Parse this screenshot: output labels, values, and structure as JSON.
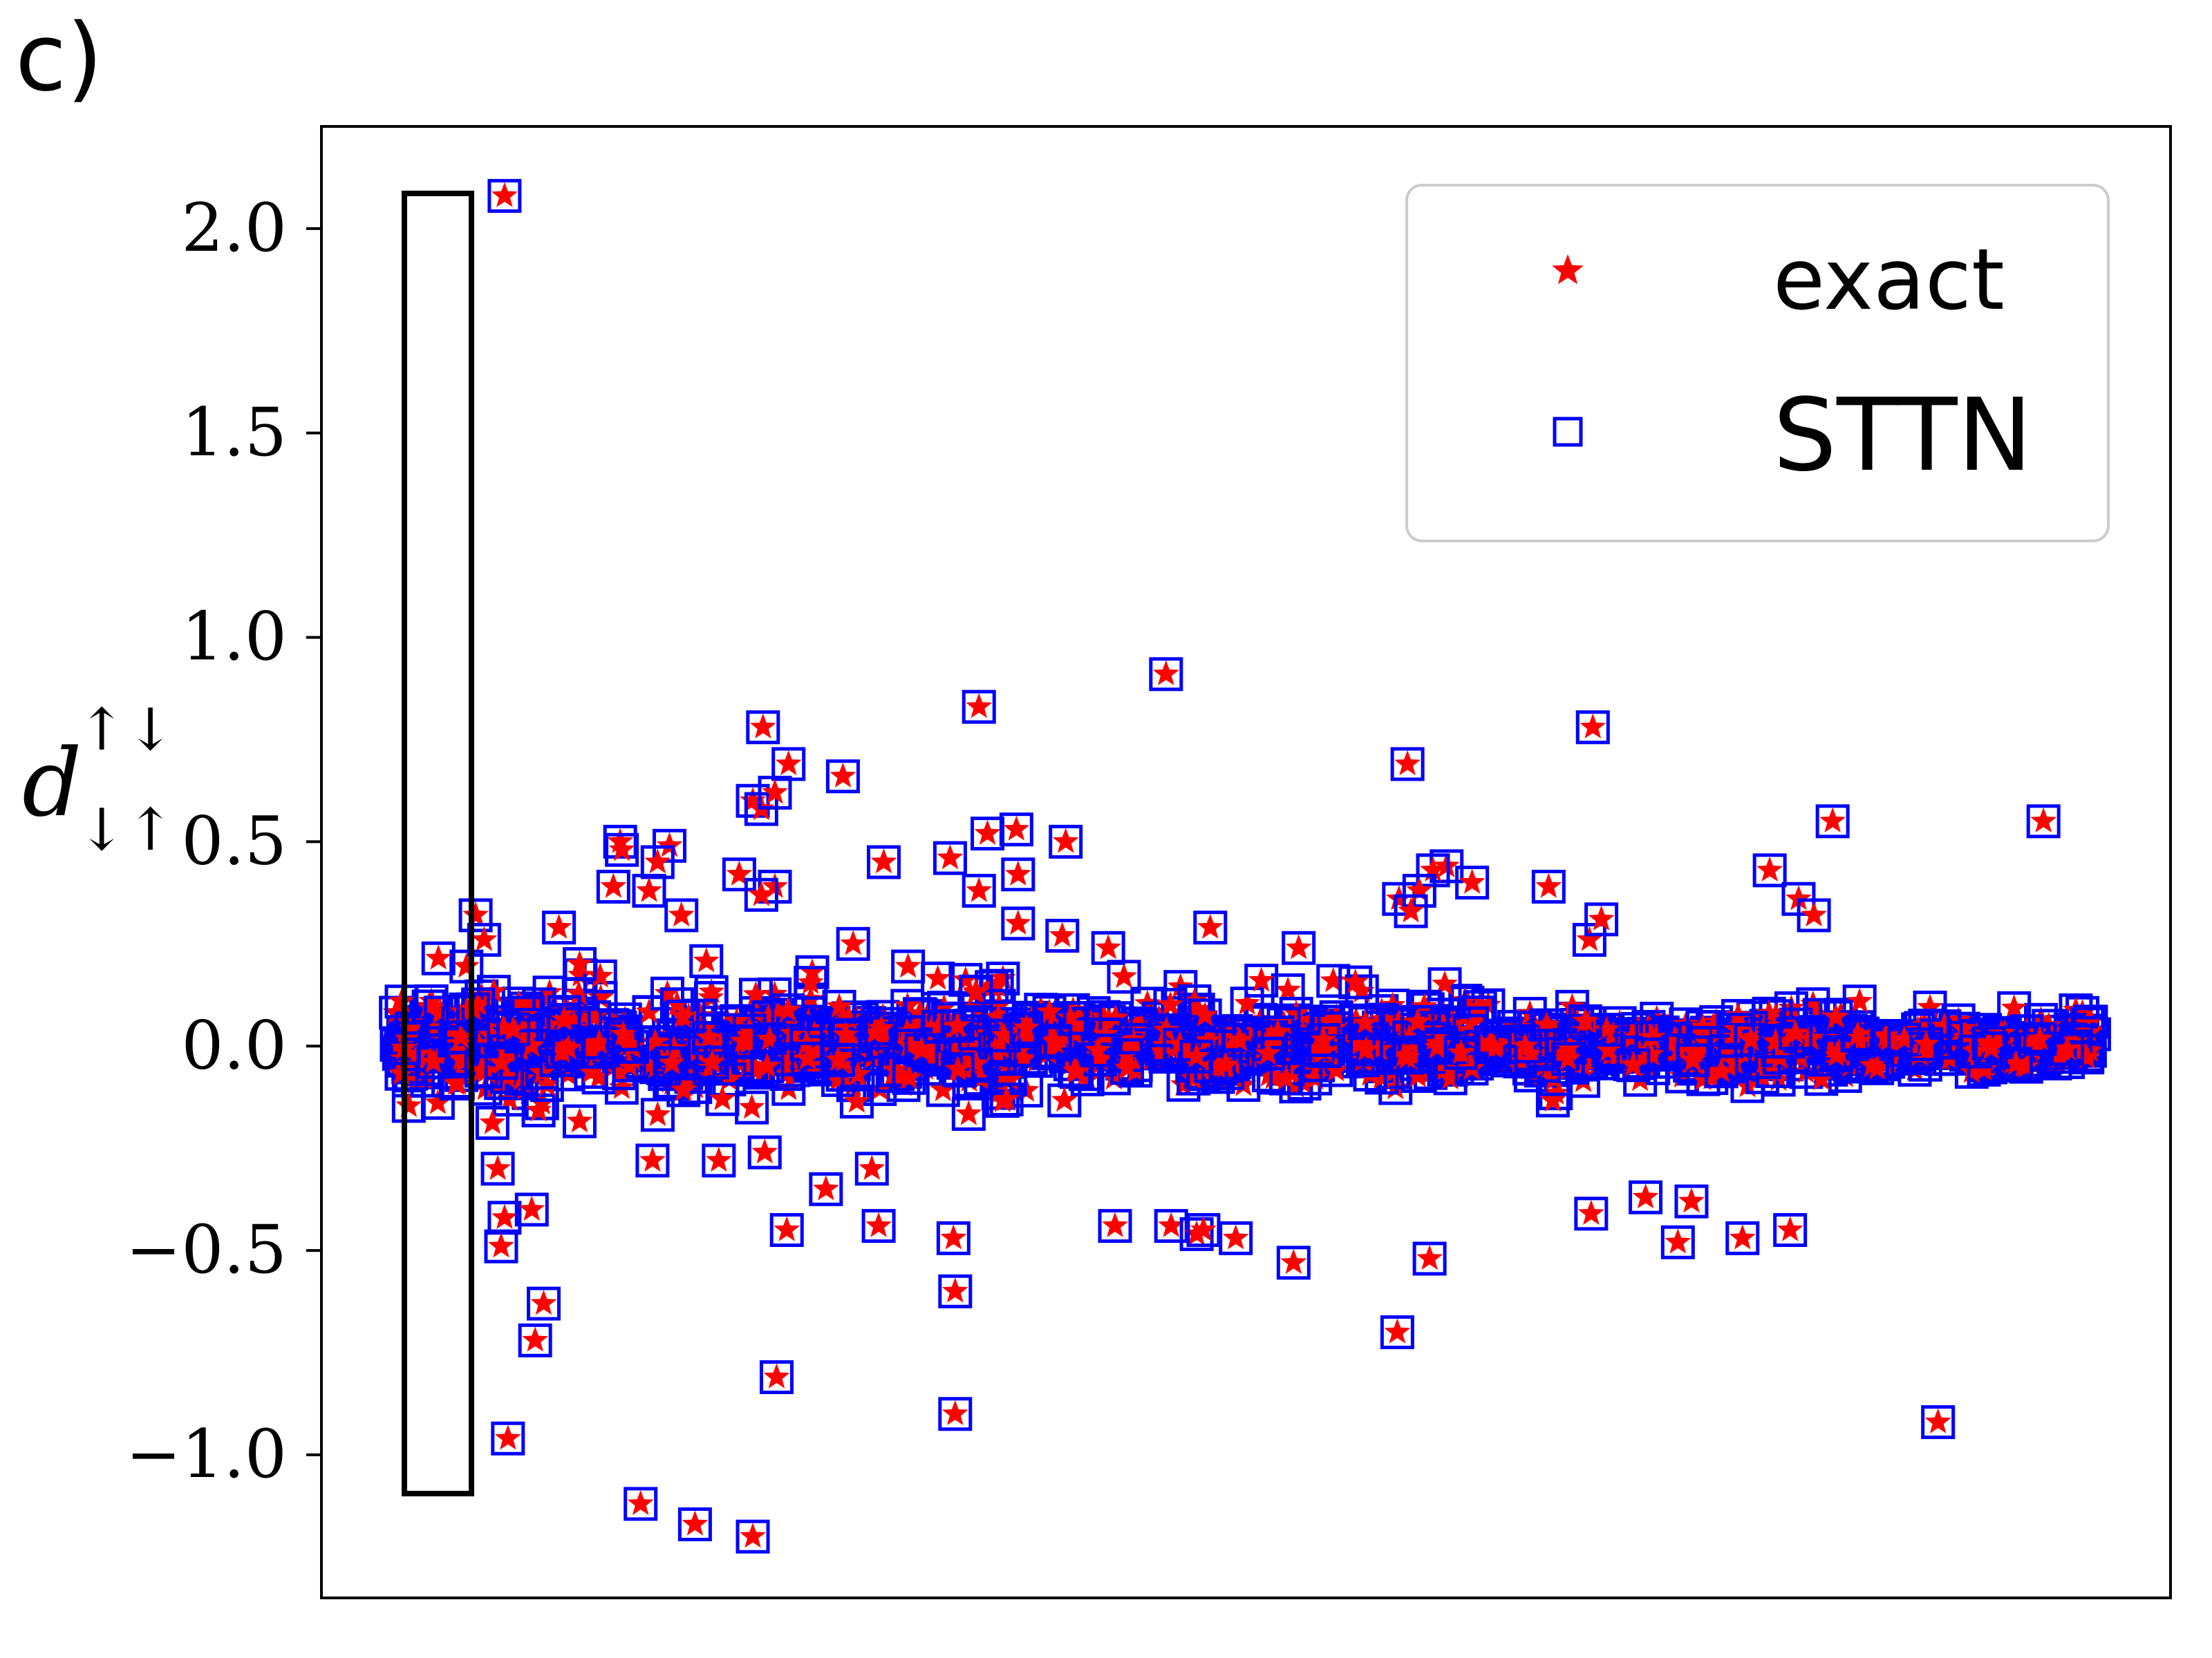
{
  "panel_label": "c)",
  "chart_data": {
    "type": "scatter",
    "ylabel": "d",
    "ylabel_superscript": "↑↓",
    "ylabel_subscript": "↓↑",
    "xlabel": "",
    "ylim": [
      -1.35,
      2.25
    ],
    "xlim": [
      0,
      1000
    ],
    "y_ticks": [
      2.0,
      1.5,
      1.0,
      0.5,
      0.0,
      -0.5,
      -1.0
    ],
    "y_tick_labels": [
      "2.0",
      "1.5",
      "1.0",
      "0.5",
      "0.0",
      "−0.5",
      "−1.0"
    ],
    "x_ticks_visible": false,
    "grid": false,
    "legend_position": "top-right",
    "series": [
      {
        "name": "exact",
        "marker": "star",
        "color": "#ff0000"
      },
      {
        "name": "STTN",
        "marker": "open-square",
        "color": "#0000ff"
      }
    ],
    "highlight_box": {
      "x_range": [
        45,
        82
      ],
      "y_range": [
        -1.1,
        2.2
      ],
      "color": "#000000"
    },
    "outliers": [
      [
        65,
        2.08
      ],
      [
        454,
        0.91
      ],
      [
        344,
        0.83
      ],
      [
        705,
        0.78
      ],
      [
        217,
        0.78
      ],
      [
        232,
        0.69
      ],
      [
        596,
        0.69
      ],
      [
        264,
        0.66
      ],
      [
        211,
        0.6
      ],
      [
        216,
        0.58
      ],
      [
        224,
        0.62
      ],
      [
        846,
        0.55
      ],
      [
        970,
        0.55
      ],
      [
        133,
        0.5
      ],
      [
        162,
        0.49
      ],
      [
        349,
        0.52
      ],
      [
        366,
        0.53
      ],
      [
        395,
        0.5
      ],
      [
        134,
        0.48
      ],
      [
        155,
        0.45
      ],
      [
        288,
        0.45
      ],
      [
        327,
        0.46
      ],
      [
        619,
        0.44
      ],
      [
        611,
        0.43
      ],
      [
        634,
        0.4
      ],
      [
        679,
        0.39
      ],
      [
        809,
        0.43
      ],
      [
        826,
        0.36
      ],
      [
        835,
        0.32
      ],
      [
        367,
        0.42
      ],
      [
        203,
        0.42
      ],
      [
        224,
        0.39
      ],
      [
        216,
        0.37
      ],
      [
        344,
        0.38
      ],
      [
        97,
        0.29
      ],
      [
        129,
        0.39
      ],
      [
        150,
        0.38
      ],
      [
        48,
        0.32
      ],
      [
        53,
        0.26
      ],
      [
        169,
        0.32
      ],
      [
        367,
        0.3
      ],
      [
        393,
        0.27
      ],
      [
        480,
        0.29
      ],
      [
        591,
        0.36
      ],
      [
        603,
        0.38
      ],
      [
        703,
        0.26
      ],
      [
        420,
        0.24
      ],
      [
        532,
        0.24
      ],
      [
        270,
        0.25
      ],
      [
        598,
        0.33
      ],
      [
        710,
        0.31
      ],
      [
        61,
        -0.3
      ],
      [
        65,
        -0.42
      ],
      [
        63,
        -0.49
      ],
      [
        81,
        -0.4
      ],
      [
        88,
        -0.63
      ],
      [
        83,
        -0.72
      ],
      [
        67,
        -0.96
      ],
      [
        177,
        -1.17
      ],
      [
        145,
        -1.12
      ],
      [
        211,
        -1.2
      ],
      [
        225,
        -0.81
      ],
      [
        330,
        -0.9
      ],
      [
        330,
        -0.6
      ],
      [
        329,
        -0.47
      ],
      [
        231,
        -0.45
      ],
      [
        254,
        -0.35
      ],
      [
        285,
        -0.44
      ],
      [
        424,
        -0.44
      ],
      [
        457,
        -0.44
      ],
      [
        472,
        -0.46
      ],
      [
        476,
        -0.45
      ],
      [
        495,
        -0.47
      ],
      [
        529,
        -0.53
      ],
      [
        590,
        -0.7
      ],
      [
        609,
        -0.52
      ],
      [
        704,
        -0.41
      ],
      [
        736,
        -0.37
      ],
      [
        755,
        -0.48
      ],
      [
        763,
        -0.38
      ],
      [
        793,
        -0.47
      ],
      [
        821,
        -0.45
      ],
      [
        908,
        -0.92
      ],
      [
        191,
        -0.28
      ],
      [
        152,
        -0.28
      ],
      [
        218,
        -0.26
      ],
      [
        281,
        -0.3
      ]
    ],
    "num_points_band": 1400
  },
  "legend": {
    "entries": [
      "exact",
      "STTN"
    ]
  }
}
